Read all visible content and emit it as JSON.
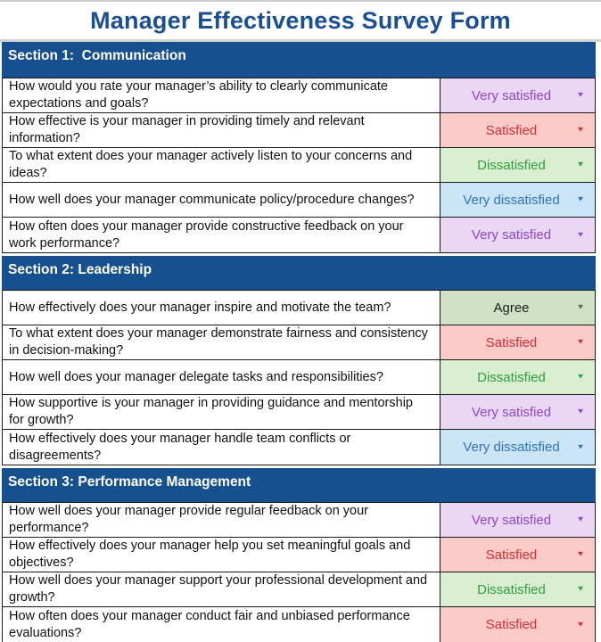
{
  "title": "Manager Effectiveness Survey Form",
  "icons": {
    "dropdown_arrow": "▼"
  },
  "colors": {
    "title": "#1b4f94",
    "section_bar": "#17508f",
    "top_strip": "#cdcdcd",
    "styles": {
      "very_satisfied": {
        "bg": "#e9d7f5",
        "fg": "#9047c5",
        "arrow": "#9047c5"
      },
      "satisfied": {
        "bg": "#f9cac6",
        "fg": "#d22f35",
        "arrow": "#d22f35"
      },
      "dissatisfied": {
        "bg": "#d9edcf",
        "fg": "#2f9e45",
        "arrow": "#2f9e45"
      },
      "very_dissatisfied": {
        "bg": "#cce5f6",
        "fg": "#2e74b9",
        "arrow": "#2e74b9"
      },
      "agree": {
        "bg": "#cfe2c3",
        "fg": "#1d1d1b",
        "arrow": "#5a6b52"
      }
    }
  },
  "sections": [
    {
      "header": "Section 1:  Communication",
      "rows": [
        {
          "question": "How would you rate your manager’s ability to clearly communicate expectations and goals?",
          "answer": "Very satisfied",
          "style": "very_satisfied"
        },
        {
          "question": "How effective is your manager in providing timely and relevant information?",
          "answer": "Satisfied",
          "style": "satisfied"
        },
        {
          "question": "To what extent does your manager actively listen to your concerns and ideas?",
          "answer": "Dissatisfied",
          "style": "dissatisfied"
        },
        {
          "question": "How well does your manager communicate policy/procedure changes?",
          "answer": "Very dissatisfied",
          "style": "very_dissatisfied"
        },
        {
          "question": "How often does your manager provide constructive feedback on your work performance?",
          "answer": "Very satisfied",
          "style": "very_satisfied"
        }
      ]
    },
    {
      "header": "Section 2: Leadership",
      "rows": [
        {
          "question": "How effectively does your manager inspire and motivate the team?",
          "answer": "Agree",
          "style": "agree"
        },
        {
          "question": "To what extent does your manager demonstrate fairness and consistency in decision-making?",
          "answer": "Satisfied",
          "style": "satisfied"
        },
        {
          "question": "How well does your manager delegate tasks and responsibilities?",
          "answer": "Dissatisfied",
          "style": "dissatisfied"
        },
        {
          "question": "How supportive is your manager in providing guidance and mentorship for growth?",
          "answer": "Very satisfied",
          "style": "very_satisfied"
        },
        {
          "question": "How effectively does your manager handle team conflicts or disagreements?",
          "answer": "Very dissatisfied",
          "style": "very_dissatisfied"
        }
      ]
    },
    {
      "header": "Section 3: Performance Management",
      "rows": [
        {
          "question": "How well does your manager provide regular feedback on your performance?",
          "answer": "Very satisfied",
          "style": "very_satisfied"
        },
        {
          "question": "How effectively does your manager help you set meaningful goals and objectives?",
          "answer": "Satisfied",
          "style": "satisfied"
        },
        {
          "question": "How well does your manager support your professional development and growth?",
          "answer": "Dissatisfied",
          "style": "dissatisfied"
        },
        {
          "question": "How often does your manager conduct fair and unbiased performance evaluations?",
          "answer": "Satisfied",
          "style": "satisfied"
        }
      ]
    }
  ]
}
